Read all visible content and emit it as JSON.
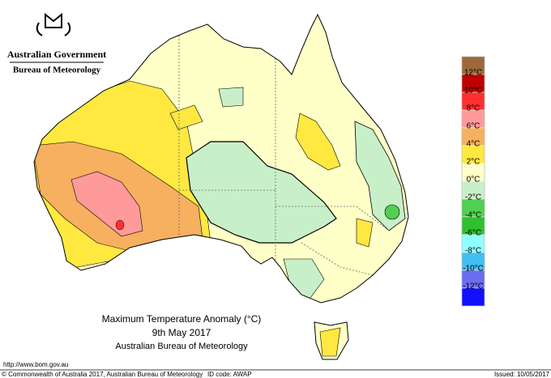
{
  "header": {
    "government": "Australian Government",
    "agency": "Bureau of Meteorology"
  },
  "map": {
    "title": "Maximum Temperature Anomaly (°C)",
    "date": "9th May 2017",
    "credit": "Australian Bureau of Meteorology"
  },
  "legend": {
    "colors": [
      "#9c6a3a",
      "#c00000",
      "#ff3030",
      "#ff9a9a",
      "#f7b060",
      "#ffe840",
      "#ffffc8",
      "#c8f0c8",
      "#50d050",
      "#30c030",
      "#90ffff",
      "#40c0f0",
      "#6c6cf0",
      "#1010ff"
    ],
    "labels": [
      "12°C",
      "10°C",
      "8°C",
      "6°C",
      "4°C",
      "2°C",
      "0°C",
      "-2°C",
      "-4°C",
      "-6°C",
      "-8°C",
      "-10°C",
      "-12°C"
    ]
  },
  "footer": {
    "url": "http://www.bom.gov.au",
    "copyright": "© Commonwealth of Australia 2017, Australian Bureau of Meteorology",
    "id_code": "ID code: AWAP",
    "issued": "Issued: 10/05/2017"
  }
}
